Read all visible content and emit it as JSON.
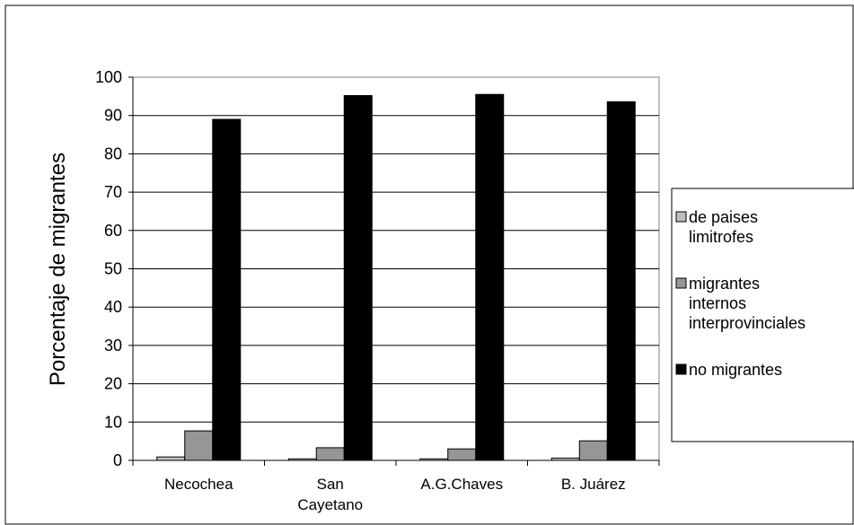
{
  "chart_data": {
    "type": "bar",
    "title": "",
    "xlabel": "",
    "ylabel": "Porcentaje de migrantes",
    "ylim": [
      0,
      100
    ],
    "yticks": [
      0,
      10,
      20,
      30,
      40,
      50,
      60,
      70,
      80,
      90,
      100
    ],
    "grid": true,
    "legend_position": "right",
    "categories": [
      [
        "Necochea"
      ],
      [
        "San",
        "Cayetano"
      ],
      [
        "A.G.Chaves"
      ],
      [
        "B. Juárez"
      ]
    ],
    "series": [
      {
        "name": [
          "de paises",
          "limitrofes"
        ],
        "color": "#c0c0c0",
        "values": [
          0.9,
          0.4,
          0.4,
          0.6
        ]
      },
      {
        "name": [
          "migrantes",
          "internos",
          "interprovinciales"
        ],
        "color": "#969696",
        "values": [
          7.7,
          3.3,
          3.0,
          5.1
        ]
      },
      {
        "name": [
          "no migrantes"
        ],
        "color": "#000000",
        "values": [
          89.0,
          95.2,
          95.5,
          93.6
        ]
      }
    ]
  }
}
